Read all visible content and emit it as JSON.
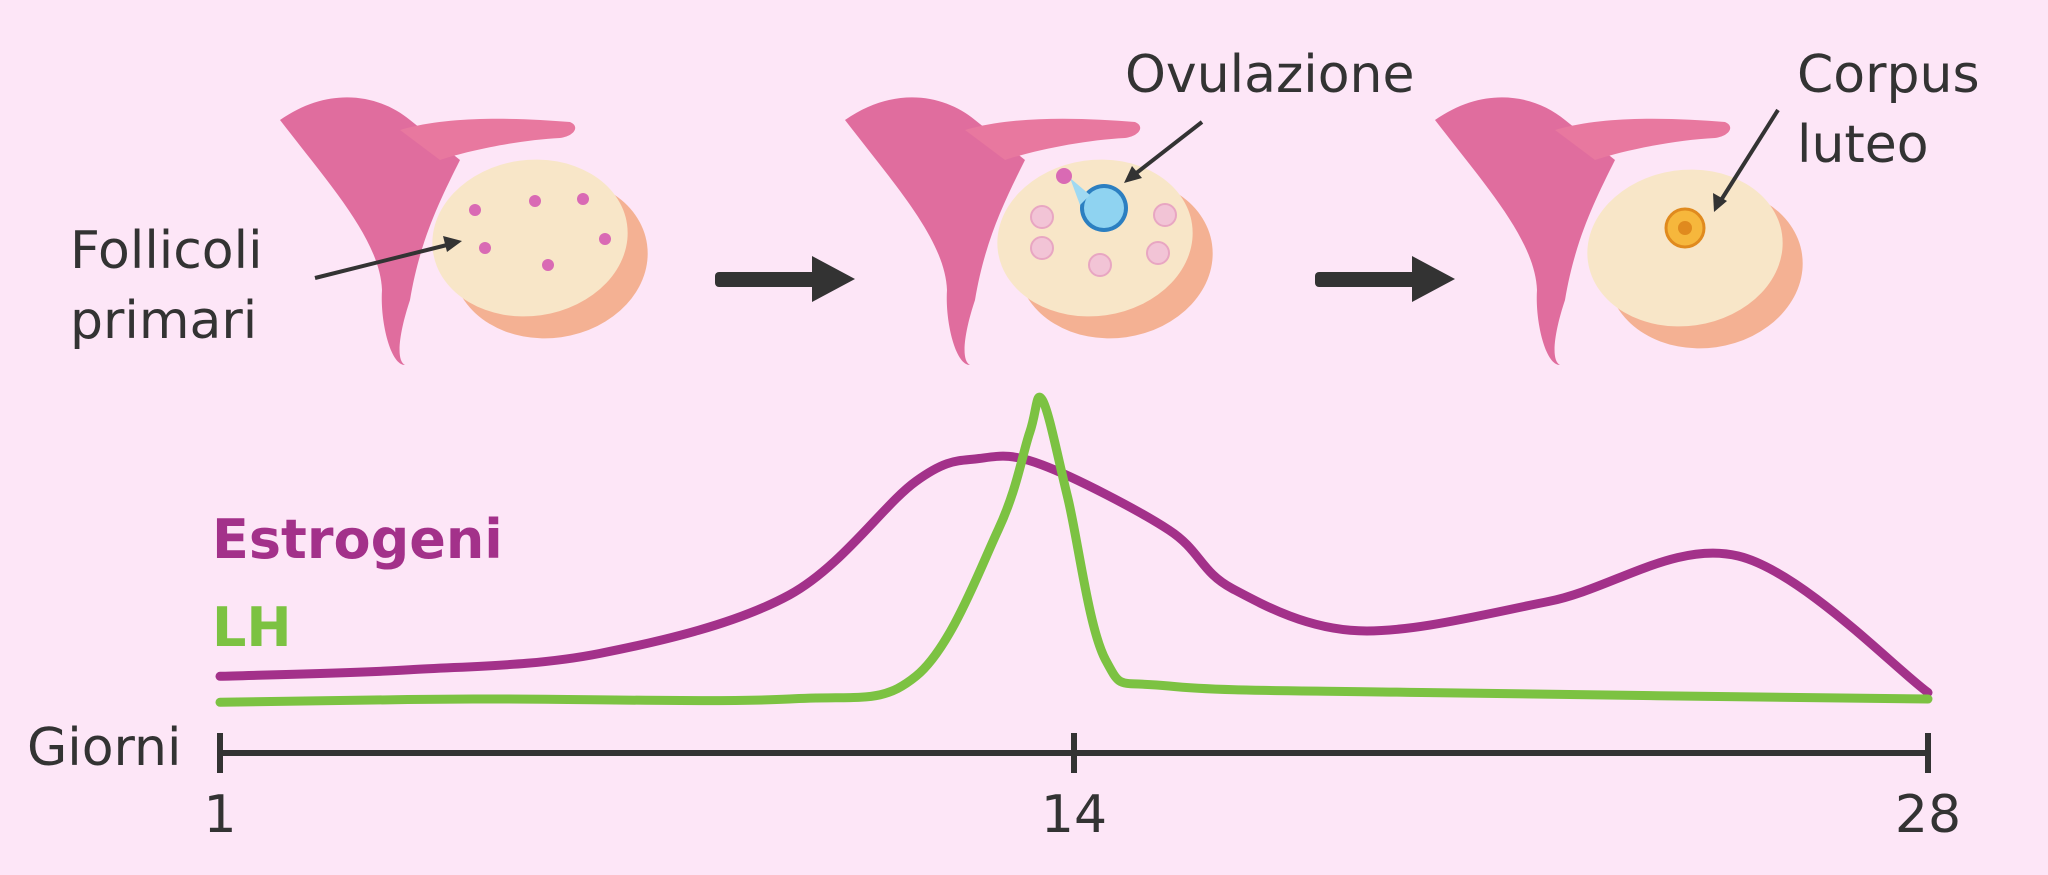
{
  "labels": {
    "follicles": [
      "Follicoli",
      "primari"
    ],
    "ovulation": "Ovulazione",
    "corpus": [
      "Corpus",
      "luteo"
    ]
  },
  "legend": {
    "estrogen": "Estrogeni",
    "lh": "LH"
  },
  "axis": {
    "label": "Giorni",
    "ticks": [
      "1",
      "14",
      "28"
    ]
  },
  "colors": {
    "background": "#fde6f7",
    "estrogen": "#a3318a",
    "lh": "#7cc242",
    "axis": "#333333",
    "ovary": "#f8e6c8",
    "tube": "#e06d9e"
  },
  "chart_data": {
    "type": "line",
    "xlabel": "Giorni",
    "x_ticks": [
      1,
      14,
      28
    ],
    "xlim": [
      1,
      28
    ],
    "series": [
      {
        "name": "Estrogeni",
        "x": [
          1,
          4,
          7,
          10,
          12,
          13,
          14,
          16,
          17,
          19,
          22,
          25,
          28
        ],
        "y": [
          0.15,
          0.17,
          0.22,
          0.4,
          0.75,
          0.82,
          0.8,
          0.6,
          0.42,
          0.29,
          0.38,
          0.52,
          0.1
        ]
      },
      {
        "name": "LH",
        "x": [
          1,
          5,
          10,
          12,
          13.3,
          13.8,
          14,
          14.4,
          15,
          16,
          20,
          28
        ],
        "y": [
          0.07,
          0.08,
          0.08,
          0.15,
          0.6,
          0.9,
          1.0,
          0.7,
          0.2,
          0.12,
          0.1,
          0.08
        ]
      }
    ]
  }
}
